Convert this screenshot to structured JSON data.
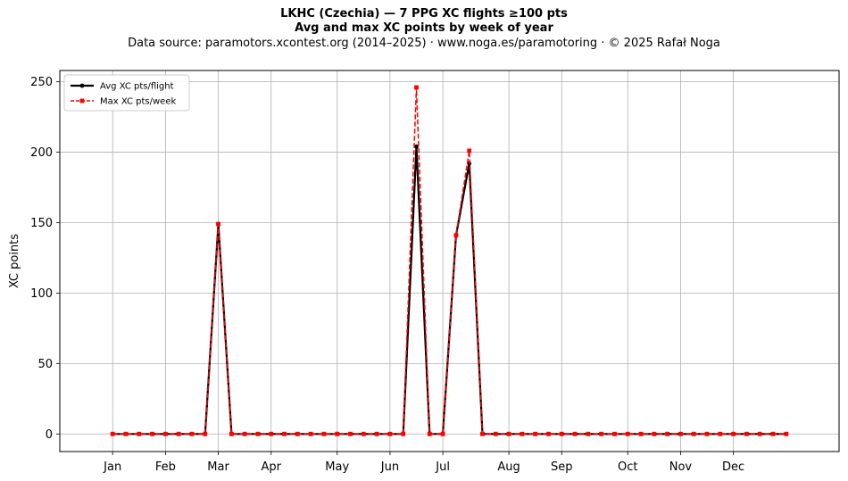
{
  "chart_data": {
    "type": "line",
    "title": "LKHC (Czechia)  —  7 PPG XC flights ≥100 pts",
    "subtitle": "Avg and max XC points by week of year",
    "source_note": "Data source: paramotors.xcontest.org (2014–2025)  ·  www.noga.es/paramotoring  ·  © 2025 Rafał Noga",
    "xlabel": "",
    "ylabel": "XC points",
    "xlim": [
      -3,
      56
    ],
    "ylim": [
      -12.5,
      258
    ],
    "y_ticks": [
      0,
      50,
      100,
      150,
      200,
      250
    ],
    "x_ticks": [
      {
        "label": "Jan",
        "week": 1
      },
      {
        "label": "Feb",
        "week": 5
      },
      {
        "label": "Mar",
        "week": 9
      },
      {
        "label": "Apr",
        "week": 13
      },
      {
        "label": "May",
        "week": 18
      },
      {
        "label": "Jun",
        "week": 22
      },
      {
        "label": "Jul",
        "week": 26
      },
      {
        "label": "Aug",
        "week": 31
      },
      {
        "label": "Sep",
        "week": 35
      },
      {
        "label": "Oct",
        "week": 40
      },
      {
        "label": "Nov",
        "week": 44
      },
      {
        "label": "Dec",
        "week": 48
      }
    ],
    "grid": true,
    "legend_position": "top-left",
    "x": [
      1,
      2,
      3,
      4,
      5,
      6,
      7,
      8,
      9,
      10,
      11,
      12,
      13,
      14,
      15,
      16,
      17,
      18,
      19,
      20,
      21,
      22,
      23,
      24,
      25,
      26,
      27,
      28,
      29,
      30,
      31,
      32,
      33,
      34,
      35,
      36,
      37,
      38,
      39,
      40,
      41,
      42,
      43,
      44,
      45,
      46,
      47,
      48,
      49,
      50,
      51,
      52
    ],
    "series": [
      {
        "name": "Avg XC pts/flight",
        "color": "#000000",
        "style": "solid",
        "marker": "circle",
        "values": [
          0,
          0,
          0,
          0,
          0,
          0,
          0,
          0,
          149,
          0,
          0,
          0,
          0,
          0,
          0,
          0,
          0,
          0,
          0,
          0,
          0,
          0,
          0,
          204,
          0,
          0,
          141,
          192,
          0,
          0,
          0,
          0,
          0,
          0,
          0,
          0,
          0,
          0,
          0,
          0,
          0,
          0,
          0,
          0,
          0,
          0,
          0,
          0,
          0,
          0,
          0,
          0
        ]
      },
      {
        "name": "Max XC pts/week",
        "color": "#ff0000",
        "style": "dashed",
        "marker": "square",
        "values": [
          0,
          0,
          0,
          0,
          0,
          0,
          0,
          0,
          149,
          0,
          0,
          0,
          0,
          0,
          0,
          0,
          0,
          0,
          0,
          0,
          0,
          0,
          0,
          246,
          0,
          0,
          141,
          201,
          0,
          0,
          0,
          0,
          0,
          0,
          0,
          0,
          0,
          0,
          0,
          0,
          0,
          0,
          0,
          0,
          0,
          0,
          0,
          0,
          0,
          0,
          0,
          0
        ]
      }
    ]
  }
}
